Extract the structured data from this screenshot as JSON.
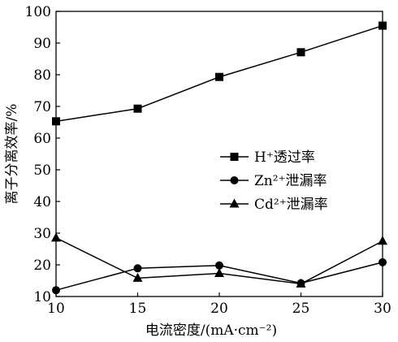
{
  "chart_data": {
    "type": "line",
    "title": "",
    "xlabel": "电流密度/(mA·cm⁻²)",
    "ylabel": "离子分离效率/%",
    "xlim": [
      10,
      30
    ],
    "ylim": [
      10,
      100
    ],
    "xticks": [
      10,
      15,
      20,
      25,
      30
    ],
    "yticks": [
      10,
      20,
      30,
      40,
      50,
      60,
      70,
      80,
      90,
      100
    ],
    "grid": false,
    "legend_position": "center-right",
    "series": [
      {
        "name": "H⁺透过率",
        "marker": "square",
        "x": [
          10,
          15,
          20,
          25,
          30
        ],
        "y": [
          65.3,
          69.3,
          79.3,
          87.1,
          95.5
        ]
      },
      {
        "name": "Zn²⁺泄漏率",
        "marker": "circle",
        "x": [
          10,
          15,
          20,
          25,
          30
        ],
        "y": [
          12.0,
          18.9,
          19.8,
          14.2,
          20.8
        ]
      },
      {
        "name": "Cd²⁺泄漏率",
        "marker": "triangle",
        "x": [
          10,
          15,
          20,
          25,
          30
        ],
        "y": [
          28.5,
          15.8,
          17.3,
          14.0,
          27.5
        ]
      }
    ]
  }
}
